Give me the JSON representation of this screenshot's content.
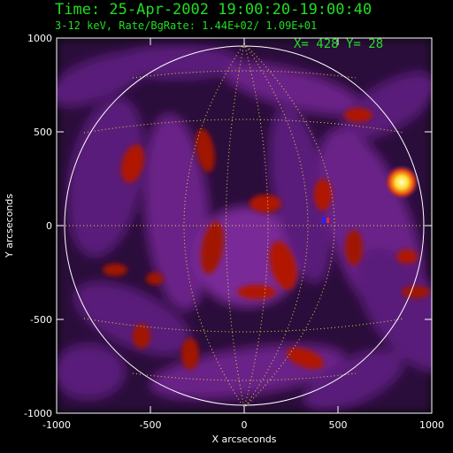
{
  "header": {
    "time_line": "Time: 25-Apr-2002 19:00:20-19:00:40",
    "energy_line": "3-12 keV, Rate/BgRate:  1.44E+02/  1.09E+01",
    "cursor_readout": "X=  428 Y=   28"
  },
  "axes": {
    "xlabel": "X arcseconds",
    "ylabel": "Y arcseconds",
    "xlim": [
      -1000,
      1000
    ],
    "ylim": [
      -1000,
      1000
    ],
    "xticks": [
      "-1000",
      "-500",
      "0",
      "500",
      "1000"
    ],
    "yticks": [
      "1000",
      "500",
      "0",
      "-500",
      "-1000"
    ]
  },
  "image": {
    "solar_limb_color": "#ffffff",
    "grid_color": "#dddd44",
    "source_peak": {
      "x": 810,
      "y": 240
    },
    "colors": {
      "background": "#000000",
      "text": "#22dd22",
      "purple": "#5a1a7a",
      "red": "#b01800",
      "hot": "#ffee44"
    }
  }
}
